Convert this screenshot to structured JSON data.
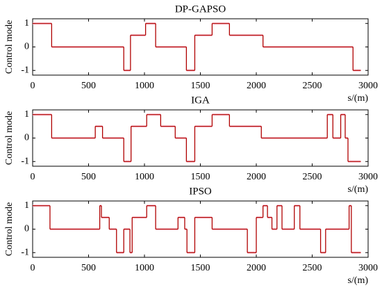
{
  "chart_data": [
    {
      "type": "step",
      "title": "DP-GAPSO",
      "xlabel": "s/(m)",
      "ylabel": "Control mode",
      "color": "#b00000",
      "x": [
        0,
        170,
        815,
        875,
        1010,
        1100,
        1375,
        1450,
        1605,
        1760,
        2060,
        2865,
        2935
      ],
      "values": [
        1,
        0,
        -1,
        0.5,
        1,
        0,
        -1,
        0.5,
        1,
        0.5,
        0,
        -1,
        -1
      ],
      "xlim": [
        0,
        3000
      ],
      "ylim": [
        -1.2,
        1.2
      ],
      "xticks": [
        0,
        500,
        1000,
        1500,
        2000,
        2500,
        3000
      ],
      "yticks": [
        -1,
        0,
        1
      ]
    },
    {
      "type": "step",
      "title": "IGA",
      "xlabel": "s/(m)",
      "ylabel": "Control mode",
      "color": "#b00000",
      "x": [
        0,
        170,
        560,
        625,
        815,
        880,
        1020,
        1145,
        1275,
        1375,
        1450,
        1605,
        1760,
        2045,
        2635,
        2685,
        2755,
        2795,
        2820,
        2935
      ],
      "values": [
        1,
        0,
        0.5,
        0,
        -1,
        0.5,
        1,
        0.5,
        0,
        -1,
        0.5,
        1,
        0.5,
        0,
        1,
        0,
        1,
        0,
        -1,
        -1
      ],
      "xlim": [
        0,
        3000
      ],
      "ylim": [
        -1.2,
        1.2
      ],
      "xticks": [
        0,
        500,
        1000,
        1500,
        2000,
        2500,
        3000
      ],
      "yticks": [
        -1,
        0,
        1
      ]
    },
    {
      "type": "step",
      "title": "IPSO",
      "xlabel": "s/(m)",
      "ylabel": "Control mode",
      "color": "#b00000",
      "x": [
        0,
        155,
        600,
        615,
        685,
        750,
        815,
        870,
        890,
        1020,
        1100,
        1300,
        1360,
        1380,
        1450,
        1605,
        1920,
        2000,
        2060,
        2100,
        2140,
        2185,
        2230,
        2340,
        2390,
        2575,
        2620,
        2830,
        2850,
        2935
      ],
      "values": [
        1,
        0,
        1,
        0.5,
        0,
        -1,
        0,
        -1,
        0.5,
        1,
        0,
        0.5,
        0,
        -1,
        0.5,
        0,
        -1,
        0.5,
        1,
        0.5,
        0,
        1,
        0,
        1,
        0,
        -1,
        0,
        1,
        -1,
        -1
      ],
      "xlim": [
        0,
        3000
      ],
      "ylim": [
        -1.2,
        1.2
      ],
      "xticks": [
        0,
        500,
        1000,
        1500,
        2000,
        2500,
        3000
      ],
      "yticks": [
        -1,
        0,
        1
      ]
    }
  ]
}
